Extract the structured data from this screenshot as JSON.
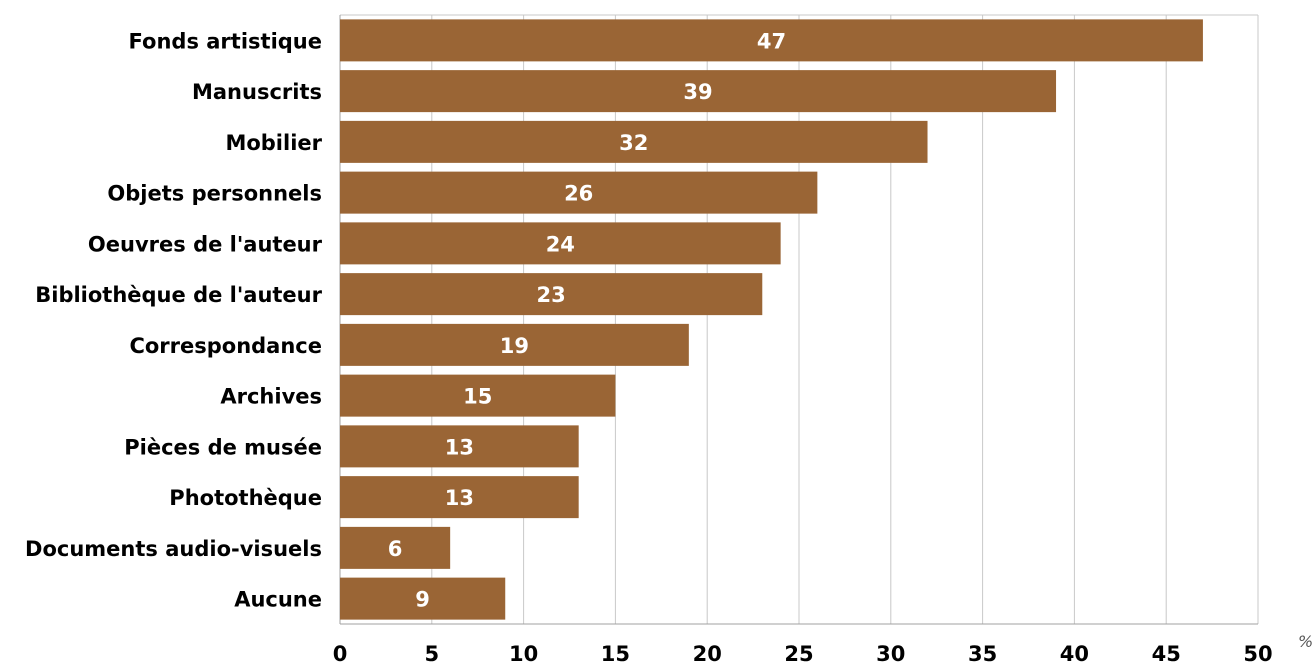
{
  "chart_data": {
    "type": "bar",
    "orientation": "horizontal",
    "categories": [
      "Fonds artistique",
      "Manuscrits",
      "Mobilier",
      "Objets personnels",
      "Oeuvres de l'auteur",
      "Bibliothèque de l'auteur",
      "Correspondance",
      "Archives",
      "Pièces de musée",
      "Photothèque",
      "Documents audio-visuels",
      "Aucune"
    ],
    "values": [
      47,
      39,
      32,
      26,
      24,
      23,
      19,
      15,
      13,
      13,
      6,
      9
    ],
    "xlim": [
      0,
      50
    ],
    "x_ticks": [
      0,
      5,
      10,
      15,
      20,
      25,
      30,
      35,
      40,
      45,
      50
    ],
    "x_unit": "%",
    "grid": true,
    "data_labels": true,
    "bar_color": "#9a6535",
    "label_color": "#ffffff"
  }
}
